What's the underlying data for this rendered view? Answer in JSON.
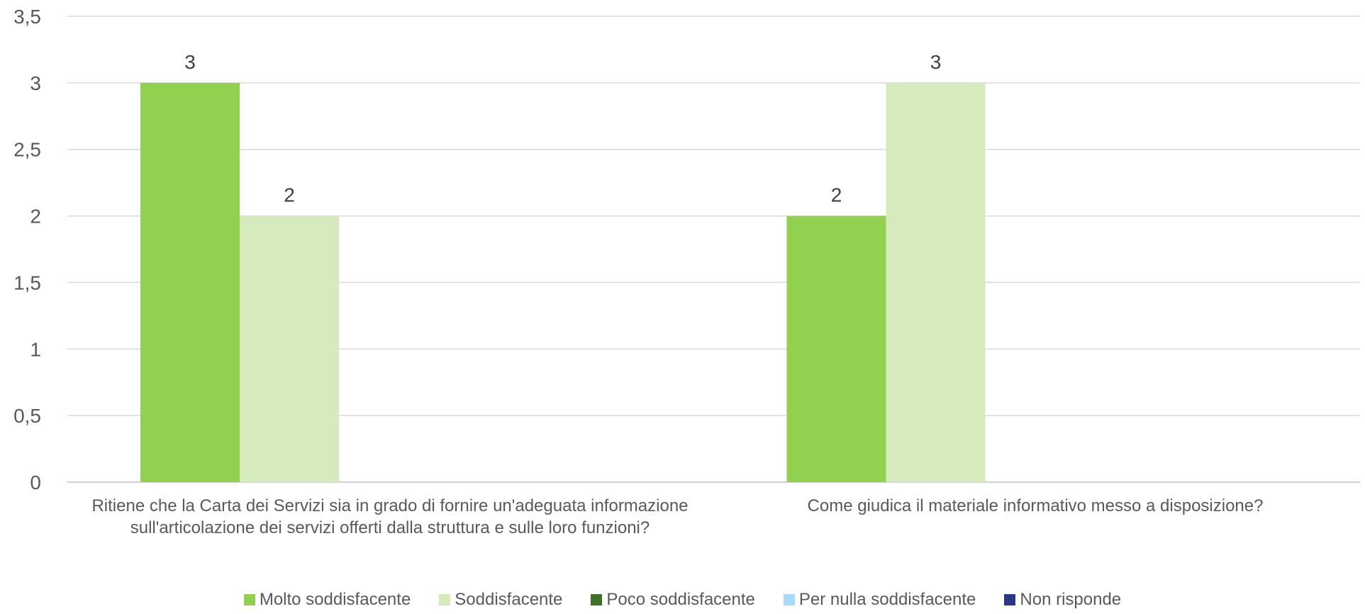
{
  "chart_data": {
    "type": "bar",
    "title": "",
    "xlabel": "",
    "ylabel": "",
    "ylim": [
      0,
      3.5
    ],
    "y_ticks": [
      "0",
      "0,5",
      "1",
      "1,5",
      "2",
      "2,5",
      "3",
      "3,5"
    ],
    "grid": true,
    "legend_position": "bottom",
    "categories": [
      "Ritiene che la Carta dei Servizi sia in grado di fornire un'adeguata informazione sull'articolazione dei servizi offerti dalla struttura e sulle loro funzioni?",
      "Come giudica il materiale informativo messo a disposizione?"
    ],
    "series": [
      {
        "name": "Molto soddisfacente",
        "color": "#92d050",
        "values": [
          3,
          2
        ]
      },
      {
        "name": "Soddisfacente",
        "color": "#d5ebbb",
        "values": [
          2,
          3
        ]
      },
      {
        "name": "Poco soddisfacente",
        "color": "#3f7323",
        "values": [
          null,
          null
        ]
      },
      {
        "name": "Per nulla soddisfacente",
        "color": "#a6dcf7",
        "values": [
          null,
          null
        ]
      },
      {
        "name": "Non risponde",
        "color": "#2c3687",
        "values": [
          null,
          null
        ]
      }
    ]
  }
}
